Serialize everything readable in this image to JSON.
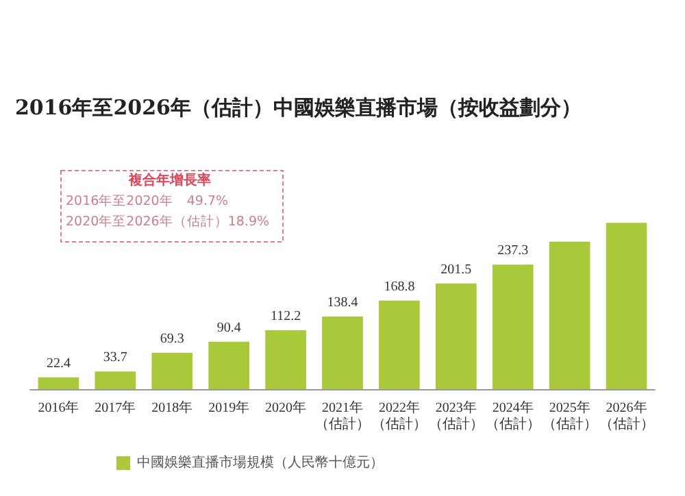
{
  "chart_data": {
    "type": "bar",
    "title": "2016年至2026年（估計）中國娛樂直播市場（按收益劃分）",
    "categories": [
      "2016年",
      "2017年",
      "2018年",
      "2019年",
      "2020年",
      "2021年（估計）",
      "2022年（估計）",
      "2023年（估計）",
      "2024年（估計）",
      "2025年（估計）",
      "2026年（估計）"
    ],
    "series": [
      {
        "name": "中國娛樂直播市場規模（人民幣十億元）",
        "color": "#a9c93b",
        "values": [
          22.4,
          33.7,
          69.3,
          90.4,
          112.2,
          138.4,
          168.8,
          201.5,
          237.3,
          281,
          317
        ],
        "value_labels": [
          "22.4",
          "33.7",
          "69.3",
          "90.4",
          "112.2",
          "138.4",
          "168.8",
          "201.5",
          "237.3",
          null,
          null
        ]
      }
    ],
    "annotations": [
      "複合年增長率",
      "2016年至2020年　49.7%",
      "2020年至2026年（估計）18.9%"
    ],
    "legend": "bottom left",
    "grid": false
  }
}
